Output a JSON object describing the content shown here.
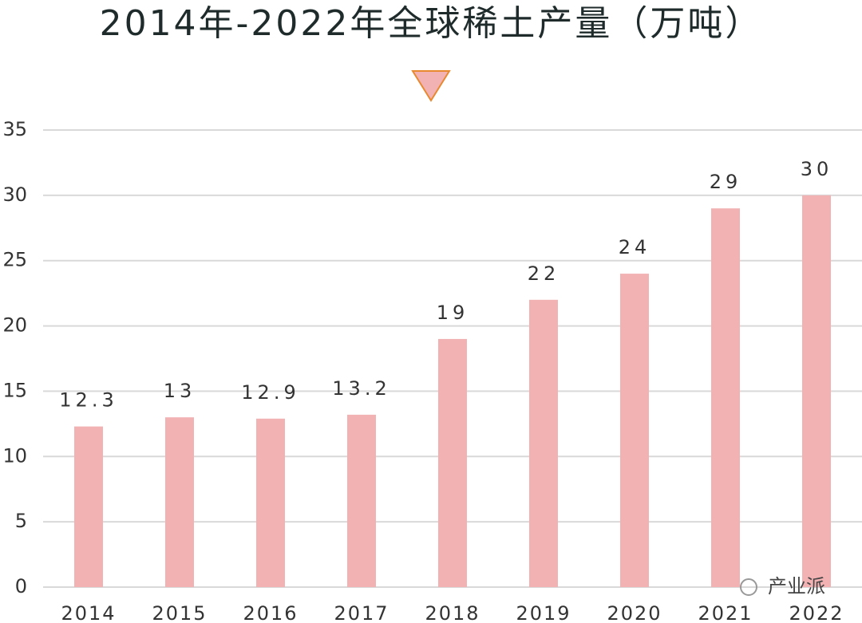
{
  "chart_data": {
    "type": "bar",
    "title": "2014年-2022年全球稀土产量（万吨）",
    "categories": [
      "2014",
      "2015",
      "2016",
      "2017",
      "2018",
      "2019",
      "2020",
      "2021",
      "2022"
    ],
    "values": [
      12.3,
      13,
      12.9,
      13.2,
      19,
      22,
      24,
      29,
      30
    ],
    "color": "#f2b1b3",
    "ylim": [
      0,
      35
    ],
    "yticks": [
      0,
      5,
      10,
      15,
      20,
      25,
      30,
      35
    ],
    "grid": true,
    "watermark": "产业派"
  }
}
